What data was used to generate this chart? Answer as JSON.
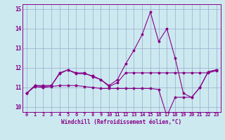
{
  "xlabel": "Windchill (Refroidissement éolien,°C)",
  "bg_color": "#cce9f0",
  "line_color": "#880088",
  "grid_color": "#99aacc",
  "xlim": [
    -0.5,
    23.5
  ],
  "ylim": [
    9.75,
    15.25
  ],
  "xticks": [
    0,
    1,
    2,
    3,
    4,
    5,
    6,
    7,
    8,
    9,
    10,
    11,
    12,
    13,
    14,
    15,
    16,
    17,
    18,
    19,
    20,
    21,
    22,
    23
  ],
  "yticks": [
    10,
    11,
    12,
    13,
    14,
    15
  ],
  "line1": [
    10.7,
    11.1,
    11.1,
    11.1,
    11.7,
    11.9,
    11.7,
    11.7,
    11.6,
    11.4,
    11.1,
    11.4,
    12.2,
    12.9,
    13.7,
    14.85,
    13.35,
    14.0,
    12.5,
    10.7,
    10.5,
    11.0,
    11.8,
    11.9
  ],
  "line2": [
    10.7,
    11.1,
    11.05,
    11.1,
    11.75,
    11.9,
    11.75,
    11.75,
    11.55,
    11.4,
    11.05,
    11.25,
    11.75,
    11.75,
    11.75,
    11.75,
    11.75,
    11.75,
    11.75,
    11.75,
    11.75,
    11.75,
    11.75,
    11.85
  ],
  "line3": [
    10.7,
    11.05,
    11.0,
    11.05,
    11.1,
    11.1,
    11.1,
    11.05,
    11.0,
    10.95,
    10.95,
    10.95,
    10.95,
    10.95,
    10.95,
    10.95,
    10.9,
    9.55,
    10.5,
    10.5,
    10.5,
    11.0,
    11.8,
    11.9
  ],
  "markersize": 2.5,
  "linewidth": 0.8,
  "tick_fontsize": 5.0,
  "xlabel_fontsize": 5.5
}
